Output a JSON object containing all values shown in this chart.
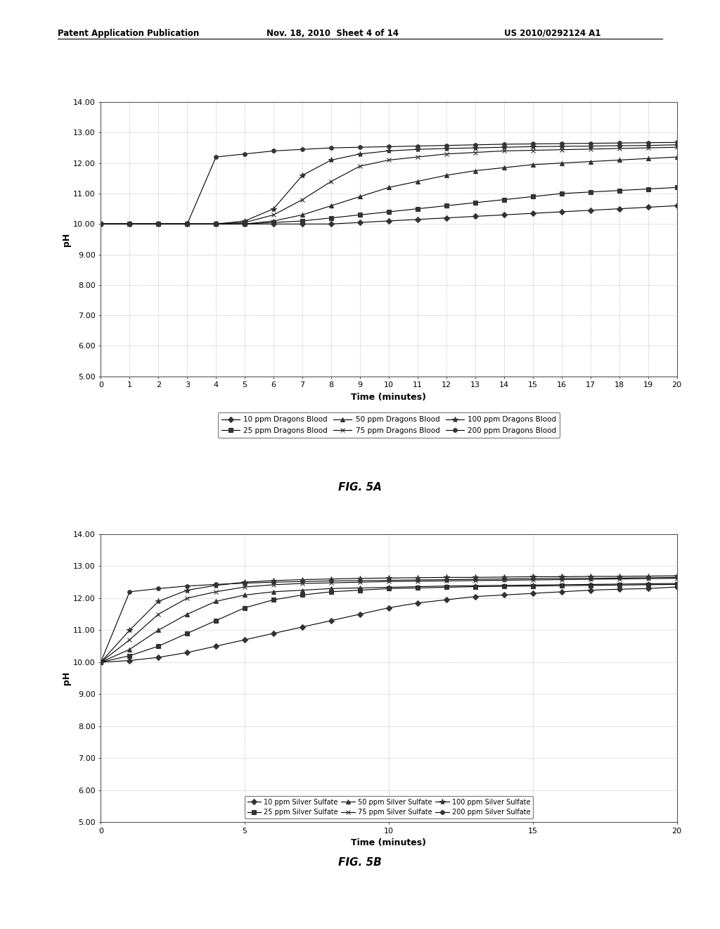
{
  "fig5a": {
    "title": "FIG. 5A",
    "xlabel": "Time (minutes)",
    "ylabel": "pH",
    "ylim": [
      5.0,
      14.0
    ],
    "xlim": [
      0,
      20
    ],
    "yticks": [
      5.0,
      6.0,
      7.0,
      8.0,
      9.0,
      10.0,
      11.0,
      12.0,
      13.0,
      14.0
    ],
    "xticks": [
      0,
      1,
      2,
      3,
      4,
      5,
      6,
      7,
      8,
      9,
      10,
      11,
      12,
      13,
      14,
      15,
      16,
      17,
      18,
      19,
      20
    ],
    "series": [
      {
        "label": "10 ppm Dragons Blood",
        "marker": "D",
        "data_x": [
          0,
          1,
          2,
          3,
          4,
          5,
          6,
          7,
          8,
          9,
          10,
          11,
          12,
          13,
          14,
          15,
          16,
          17,
          18,
          19,
          20
        ],
        "data_y": [
          10.0,
          10.0,
          10.0,
          10.0,
          10.0,
          10.0,
          10.0,
          10.0,
          10.0,
          10.05,
          10.1,
          10.15,
          10.2,
          10.25,
          10.3,
          10.35,
          10.4,
          10.45,
          10.5,
          10.55,
          10.6
        ]
      },
      {
        "label": "25 ppm Dragons Blood",
        "marker": "s",
        "data_x": [
          0,
          1,
          2,
          3,
          4,
          5,
          6,
          7,
          8,
          9,
          10,
          11,
          12,
          13,
          14,
          15,
          16,
          17,
          18,
          19,
          20
        ],
        "data_y": [
          10.0,
          10.0,
          10.0,
          10.0,
          10.0,
          10.0,
          10.05,
          10.1,
          10.2,
          10.3,
          10.4,
          10.5,
          10.6,
          10.7,
          10.8,
          10.9,
          11.0,
          11.05,
          11.1,
          11.15,
          11.2
        ]
      },
      {
        "label": "50 ppm Dragons Blood",
        "marker": "^",
        "data_x": [
          0,
          1,
          2,
          3,
          4,
          5,
          6,
          7,
          8,
          9,
          10,
          11,
          12,
          13,
          14,
          15,
          16,
          17,
          18,
          19,
          20
        ],
        "data_y": [
          10.0,
          10.0,
          10.0,
          10.0,
          10.0,
          10.0,
          10.1,
          10.3,
          10.6,
          10.9,
          11.2,
          11.4,
          11.6,
          11.75,
          11.85,
          11.95,
          12.0,
          12.05,
          12.1,
          12.15,
          12.2
        ]
      },
      {
        "label": "75 ppm Dragons Blood",
        "marker": "x",
        "data_x": [
          0,
          1,
          2,
          3,
          4,
          5,
          6,
          7,
          8,
          9,
          10,
          11,
          12,
          13,
          14,
          15,
          16,
          17,
          18,
          19,
          20
        ],
        "data_y": [
          10.0,
          10.0,
          10.0,
          10.0,
          10.0,
          10.05,
          10.3,
          10.8,
          11.4,
          11.9,
          12.1,
          12.2,
          12.3,
          12.35,
          12.4,
          12.42,
          12.44,
          12.46,
          12.48,
          12.5,
          12.52
        ]
      },
      {
        "label": "100 ppm Dragons Blood",
        "marker": "*",
        "data_x": [
          0,
          1,
          2,
          3,
          4,
          5,
          6,
          7,
          8,
          9,
          10,
          11,
          12,
          13,
          14,
          15,
          16,
          17,
          18,
          19,
          20
        ],
        "data_y": [
          10.0,
          10.0,
          10.0,
          10.0,
          10.0,
          10.1,
          10.5,
          11.6,
          12.1,
          12.3,
          12.4,
          12.45,
          12.48,
          12.5,
          12.52,
          12.54,
          12.55,
          12.56,
          12.57,
          12.58,
          12.6
        ]
      },
      {
        "label": "200 ppm Dragons Blood",
        "marker": "o",
        "data_x": [
          0,
          1,
          2,
          3,
          4,
          5,
          6,
          7,
          8,
          9,
          10,
          11,
          12,
          13,
          14,
          15,
          16,
          17,
          18,
          19,
          20
        ],
        "data_y": [
          10.0,
          10.0,
          10.0,
          10.0,
          12.2,
          12.3,
          12.4,
          12.45,
          12.5,
          12.52,
          12.54,
          12.56,
          12.58,
          12.6,
          12.62,
          12.63,
          12.64,
          12.65,
          12.66,
          12.67,
          12.68
        ]
      }
    ]
  },
  "fig5b": {
    "title": "FIG. 5B",
    "xlabel": "Time (minutes)",
    "ylabel": "pH",
    "ylim": [
      5.0,
      14.0
    ],
    "xlim": [
      0,
      20
    ],
    "yticks": [
      5.0,
      6.0,
      7.0,
      8.0,
      9.0,
      10.0,
      11.0,
      12.0,
      13.0,
      14.0
    ],
    "xticks": [
      0,
      5,
      10,
      15,
      20
    ],
    "series": [
      {
        "label": "10 ppm Silver Sulfate",
        "marker": "D",
        "data_x": [
          0,
          1,
          2,
          3,
          4,
          5,
          6,
          7,
          8,
          9,
          10,
          11,
          12,
          13,
          14,
          15,
          16,
          17,
          18,
          19,
          20
        ],
        "data_y": [
          10.0,
          10.05,
          10.15,
          10.3,
          10.5,
          10.7,
          10.9,
          11.1,
          11.3,
          11.5,
          11.7,
          11.85,
          11.95,
          12.05,
          12.1,
          12.15,
          12.2,
          12.25,
          12.28,
          12.3,
          12.35
        ]
      },
      {
        "label": "25 ppm Silver Sulfate",
        "marker": "s",
        "data_x": [
          0,
          1,
          2,
          3,
          4,
          5,
          6,
          7,
          8,
          9,
          10,
          11,
          12,
          13,
          14,
          15,
          16,
          17,
          18,
          19,
          20
        ],
        "data_y": [
          10.0,
          10.2,
          10.5,
          10.9,
          11.3,
          11.7,
          11.95,
          12.1,
          12.2,
          12.25,
          12.3,
          12.32,
          12.34,
          12.36,
          12.37,
          12.38,
          12.39,
          12.4,
          12.41,
          12.42,
          12.43
        ]
      },
      {
        "label": "50 ppm Silver Sulfate",
        "marker": "^",
        "data_x": [
          0,
          1,
          2,
          3,
          4,
          5,
          6,
          7,
          8,
          9,
          10,
          11,
          12,
          13,
          14,
          15,
          16,
          17,
          18,
          19,
          20
        ],
        "data_y": [
          10.0,
          10.4,
          11.0,
          11.5,
          11.9,
          12.1,
          12.2,
          12.25,
          12.3,
          12.32,
          12.34,
          12.36,
          12.38,
          12.39,
          12.4,
          12.41,
          12.42,
          12.43,
          12.44,
          12.45,
          12.46
        ]
      },
      {
        "label": "75 ppm Silver Sulfate",
        "marker": "x",
        "data_x": [
          0,
          1,
          2,
          3,
          4,
          5,
          6,
          7,
          8,
          9,
          10,
          11,
          12,
          13,
          14,
          15,
          16,
          17,
          18,
          19,
          20
        ],
        "data_y": [
          10.0,
          10.7,
          11.5,
          12.0,
          12.2,
          12.35,
          12.42,
          12.46,
          12.48,
          12.5,
          12.52,
          12.53,
          12.54,
          12.55,
          12.56,
          12.57,
          12.58,
          12.59,
          12.6,
          12.61,
          12.62
        ]
      },
      {
        "label": "100 ppm Silver Sulfate",
        "marker": "*",
        "data_x": [
          0,
          1,
          2,
          3,
          4,
          5,
          6,
          7,
          8,
          9,
          10,
          11,
          12,
          13,
          14,
          15,
          16,
          17,
          18,
          19,
          20
        ],
        "data_y": [
          10.0,
          11.0,
          11.9,
          12.25,
          12.4,
          12.5,
          12.55,
          12.58,
          12.6,
          12.62,
          12.63,
          12.64,
          12.65,
          12.65,
          12.66,
          12.67,
          12.67,
          12.68,
          12.68,
          12.69,
          12.7
        ]
      },
      {
        "label": "200 ppm Silver Sulfate",
        "marker": "o",
        "data_x": [
          0,
          1,
          2,
          3,
          4,
          5,
          6,
          7,
          8,
          9,
          10,
          11,
          12,
          13,
          14,
          15,
          16,
          17,
          18,
          19,
          20
        ],
        "data_y": [
          10.0,
          12.2,
          12.3,
          12.38,
          12.43,
          12.47,
          12.5,
          12.52,
          12.54,
          12.55,
          12.56,
          12.57,
          12.58,
          12.59,
          12.6,
          12.61,
          12.62,
          12.62,
          12.63,
          12.64,
          12.65
        ]
      }
    ]
  },
  "header_left": "Patent Application Publication",
  "header_mid": "Nov. 18, 2010  Sheet 4 of 14",
  "header_right": "US 2010/0292124 A1",
  "bg_color": "#ffffff",
  "plot_bg_color": "#ffffff",
  "line_color": "#000000",
  "grid_color": "#aaaaaa",
  "font_size": 8,
  "marker_size": 4
}
